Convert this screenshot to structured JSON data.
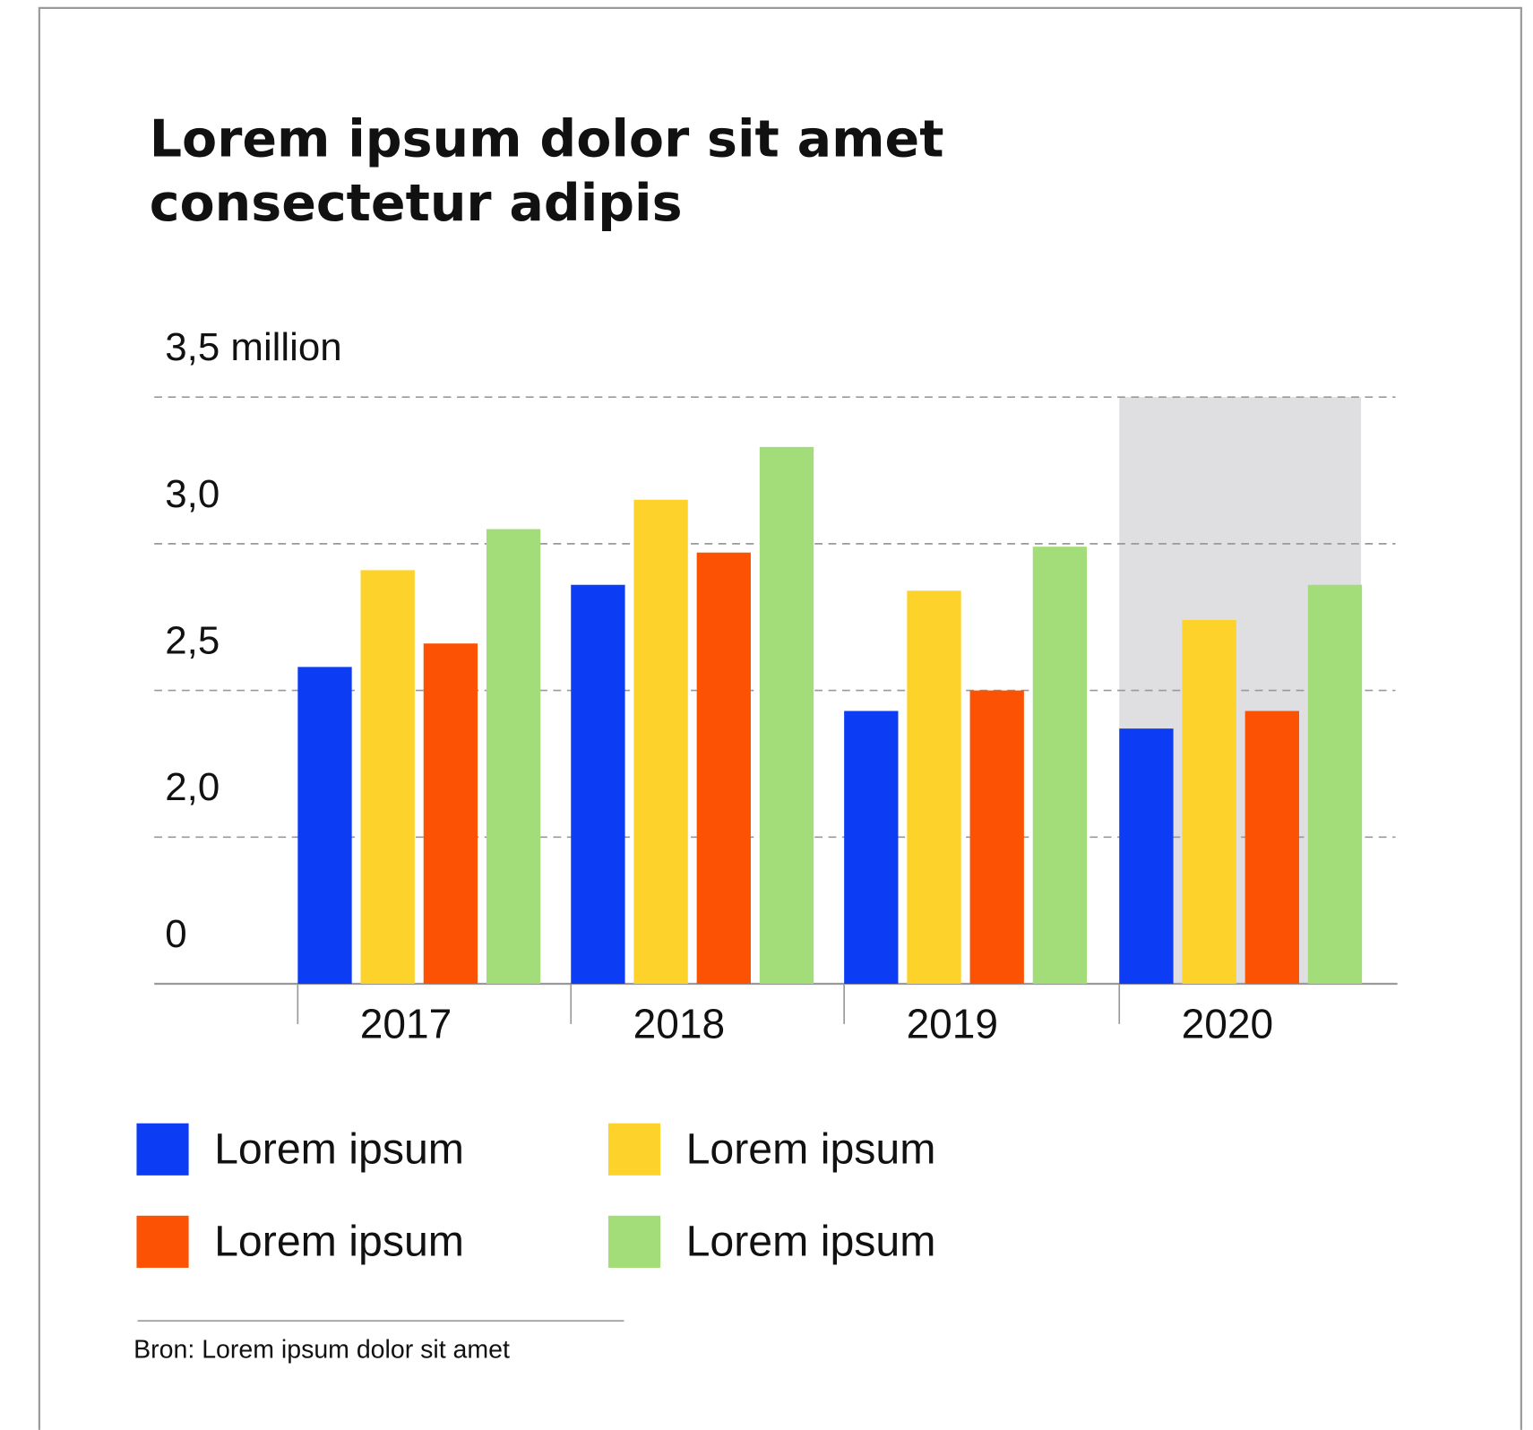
{
  "chart_data": {
    "type": "bar",
    "title": [
      "Lorem ipsum dolor sit amet",
      "consectetur adipis"
    ],
    "categories": [
      "2017",
      "2018",
      "2019",
      "2020"
    ],
    "series": [
      {
        "name": "Lorem ipsum",
        "color": "#0d3cf5",
        "values": [
          2.58,
          2.86,
          2.43,
          2.37
        ]
      },
      {
        "name": "Lorem ipsum",
        "color": "#fcd22b",
        "values": [
          2.91,
          3.15,
          2.84,
          2.74
        ]
      },
      {
        "name": "Lorem ipsum",
        "color": "#fc5204",
        "values": [
          2.66,
          2.97,
          2.5,
          2.43
        ]
      },
      {
        "name": "Lorem ipsum",
        "color": "#a3dd79",
        "values": [
          3.05,
          3.33,
          2.99,
          2.86
        ]
      }
    ],
    "ylim": [
      0,
      3.5
    ],
    "yticks": [
      {
        "value": 0,
        "label": "0"
      },
      {
        "value": 2.0,
        "label": "2,0"
      },
      {
        "value": 2.5,
        "label": "2,5"
      },
      {
        "value": 3.0,
        "label": "3,0"
      },
      {
        "value": 3.5,
        "label": "3,5 million"
      }
    ],
    "grid": true,
    "source": "Bron: Lorem ipsum dolor sit amet"
  }
}
